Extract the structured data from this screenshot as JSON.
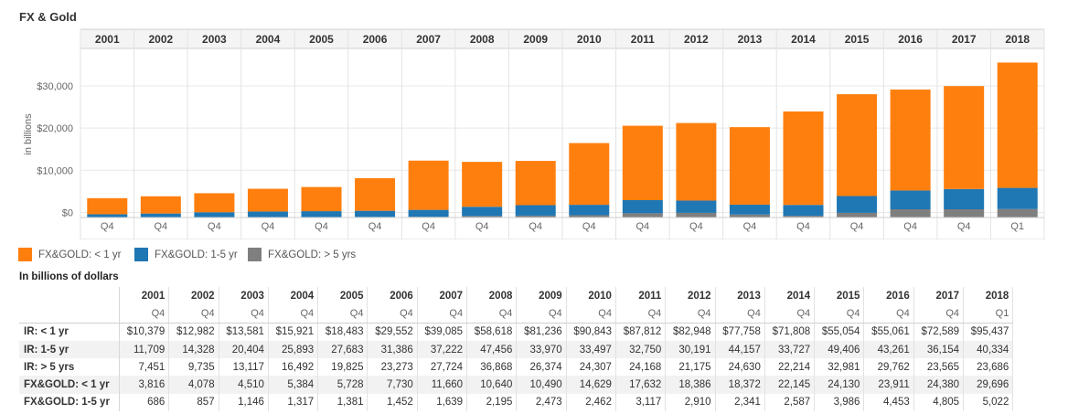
{
  "title": "FX & Gold",
  "chart_data": {
    "type": "bar",
    "stacked": true,
    "ylabel": "in billions",
    "ylim": [
      -1200,
      38000
    ],
    "yticks": [
      0,
      10000,
      20000,
      30000
    ],
    "ytick_labels": [
      "$0",
      "$10,000",
      "$20,000",
      "$30,000"
    ],
    "years": [
      "2001",
      "2002",
      "2003",
      "2004",
      "2005",
      "2006",
      "2007",
      "2008",
      "2009",
      "2010",
      "2011",
      "2012",
      "2013",
      "2014",
      "2015",
      "2016",
      "2017",
      "2018"
    ],
    "quarters": [
      "Q4",
      "Q4",
      "Q4",
      "Q4",
      "Q4",
      "Q4",
      "Q4",
      "Q4",
      "Q4",
      "Q4",
      "Q4",
      "Q4",
      "Q4",
      "Q4",
      "Q4",
      "Q4",
      "Q4",
      "Q1"
    ],
    "series": [
      {
        "name": "FX&GOLD: > 5 yrs",
        "color": "#7f7f7f",
        "values": [
          80,
          90,
          100,
          110,
          120,
          140,
          180,
          350,
          450,
          550,
          1000,
          1100,
          700,
          400,
          1100,
          1950,
          1950,
          2000
        ]
      },
      {
        "name": "FX&GOLD: 1-5 yr",
        "color": "#1f77b4",
        "values": [
          686,
          857,
          1146,
          1317,
          1381,
          1452,
          1639,
          2195,
          2473,
          2462,
          3117,
          2910,
          2341,
          2587,
          3986,
          4453,
          4805,
          5022
        ]
      },
      {
        "name": "FX&GOLD: < 1 yr",
        "color": "#ff7f0e",
        "values": [
          3816,
          4078,
          4510,
          5384,
          5728,
          7730,
          11660,
          10640,
          10490,
          14629,
          17632,
          18386,
          18372,
          22145,
          24130,
          23911,
          24380,
          29696
        ]
      }
    ],
    "legend": [
      {
        "label": "FX&GOLD: < 1 yr",
        "color": "#ff7f0e"
      },
      {
        "label": "FX&GOLD: 1-5 yr",
        "color": "#1f77b4"
      },
      {
        "label": "FX&GOLD: > 5 yrs",
        "color": "#7f7f7f"
      }
    ]
  },
  "table": {
    "title": "In billions of dollars",
    "rows": [
      {
        "label": "IR: < 1 yr",
        "values": [
          "$10,379",
          "$12,982",
          "$13,581",
          "$15,921",
          "$18,483",
          "$29,552",
          "$39,085",
          "$58,618",
          "$81,236",
          "$90,843",
          "$87,812",
          "$82,948",
          "$77,758",
          "$71,808",
          "$55,054",
          "$55,061",
          "$72,589",
          "$95,437"
        ]
      },
      {
        "label": "IR: 1-5 yr",
        "values": [
          "11,709",
          "14,328",
          "20,404",
          "25,893",
          "27,683",
          "31,386",
          "37,222",
          "47,456",
          "33,970",
          "33,497",
          "32,750",
          "30,191",
          "44,157",
          "33,727",
          "49,406",
          "43,261",
          "36,154",
          "40,334"
        ]
      },
      {
        "label": "IR: > 5 yrs",
        "values": [
          "7,451",
          "9,735",
          "13,117",
          "16,492",
          "19,825",
          "23,273",
          "27,724",
          "36,868",
          "26,374",
          "24,307",
          "24,168",
          "21,175",
          "24,630",
          "22,214",
          "32,981",
          "29,762",
          "23,565",
          "23,686"
        ]
      },
      {
        "label": "FX&GOLD: < 1 yr",
        "values": [
          "3,816",
          "4,078",
          "4,510",
          "5,384",
          "5,728",
          "7,730",
          "11,660",
          "10,640",
          "10,490",
          "14,629",
          "17,632",
          "18,386",
          "18,372",
          "22,145",
          "24,130",
          "23,911",
          "24,380",
          "29,696"
        ]
      },
      {
        "label": "FX&GOLD: 1-5 yr",
        "values": [
          "686",
          "857",
          "1,146",
          "1,317",
          "1,381",
          "1,452",
          "1,639",
          "2,195",
          "2,473",
          "2,462",
          "3,117",
          "2,910",
          "2,341",
          "2,587",
          "3,986",
          "4,453",
          "4,805",
          "5,022"
        ]
      }
    ]
  }
}
